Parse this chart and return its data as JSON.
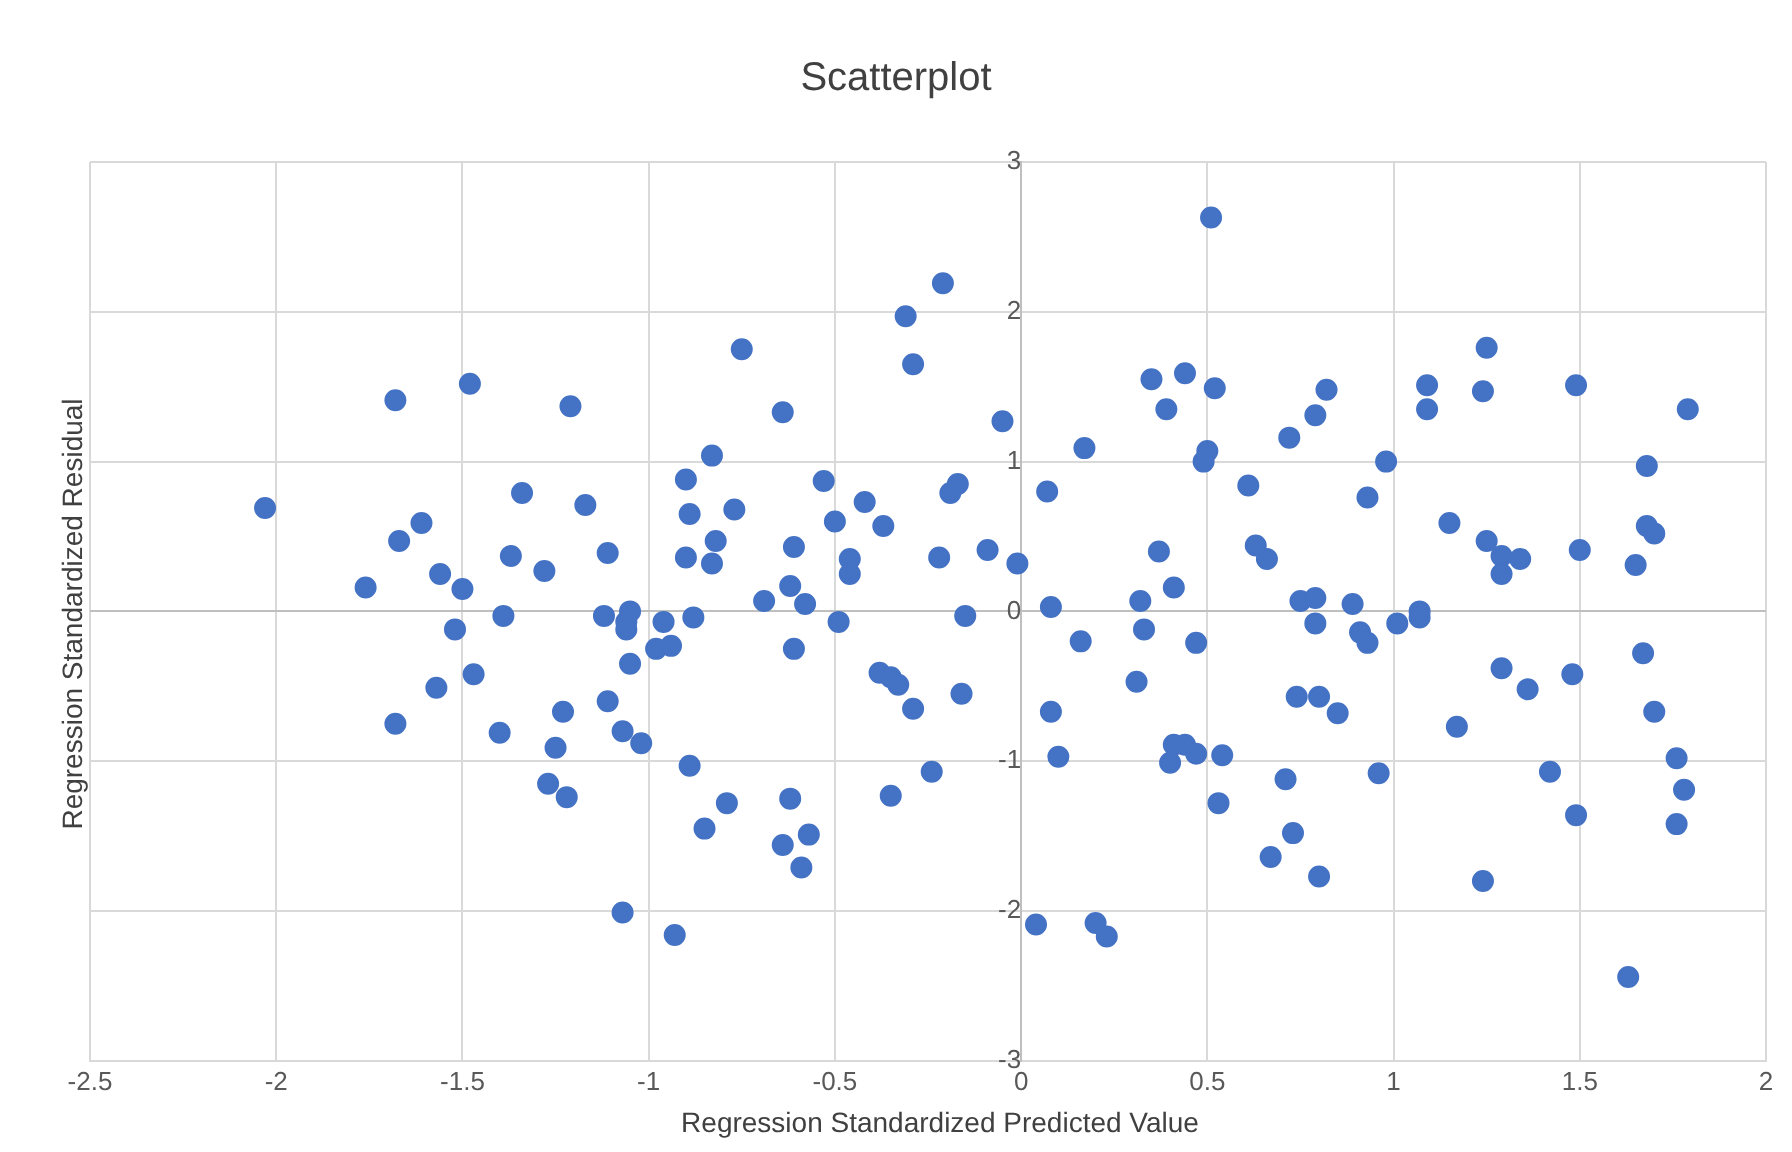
{
  "chart_data": {
    "type": "scatter",
    "title": "Scatterplot",
    "xlabel": "Regression Standardized Predicted Value",
    "ylabel": "Regression Standardized Residual",
    "x": [
      -2.03,
      -1.68,
      -1.48,
      -1.21,
      -1.34,
      -1.17,
      -1.61,
      -1.67,
      -1.37,
      -1.11,
      -1.56,
      -1.28,
      -1.76,
      -1.5,
      -1.39,
      -1.12,
      -1.05,
      -1.06,
      -0.96,
      -1.52,
      -1.06,
      -0.98,
      -1.05,
      -1.47,
      -1.57,
      -1.68,
      -1.4,
      -1.23,
      -1.11,
      -1.25,
      -1.07,
      -1.02,
      -1.27,
      -1.22,
      -1.07,
      -0.88,
      -0.75,
      -0.64,
      -0.83,
      -0.9,
      -0.53,
      -0.89,
      -0.77,
      -0.82,
      -0.9,
      -0.83,
      -0.61,
      -0.62,
      -0.69,
      -0.58,
      -0.5,
      -0.46,
      -0.46,
      -0.42,
      -0.37,
      -0.31,
      -0.21,
      -0.29,
      -0.05,
      -0.19,
      -0.17,
      -0.22,
      -0.09,
      -0.01,
      -0.49,
      -0.15,
      0.07,
      0.08,
      0.17,
      0.32,
      0.33,
      0.41,
      0.37,
      0.35,
      0.44,
      0.39,
      0.52,
      0.51,
      0.5,
      0.49,
      -0.94,
      -0.61,
      -0.89,
      -0.79,
      -0.85,
      -0.62,
      -0.64,
      -0.57,
      -0.59,
      -0.93,
      -0.38,
      -0.35,
      -0.33,
      -0.29,
      -0.16,
      -0.24,
      -0.35,
      0.16,
      0.31,
      0.47,
      0.08,
      0.1,
      0.4,
      0.41,
      0.44,
      0.47,
      0.54,
      0.53,
      0.04,
      0.2,
      0.23,
      0.82,
      0.79,
      0.72,
      0.61,
      0.98,
      0.93,
      0.63,
      0.66,
      0.75,
      0.79,
      0.89,
      0.79,
      0.91,
      0.93,
      1.01,
      1.07,
      1.07,
      1.09,
      1.09,
      1.25,
      1.24,
      1.49,
      1.79,
      1.15,
      1.25,
      1.29,
      1.34,
      1.29,
      1.5,
      1.65,
      1.68,
      1.68,
      1.7,
      1.67,
      1.29,
      1.36,
      1.48,
      1.7,
      1.76,
      1.78,
      1.76,
      1.42,
      1.49,
      1.17,
      0.96,
      0.74,
      0.8,
      0.85,
      0.71,
      0.73,
      0.67,
      0.8,
      1.24,
      1.63
    ],
    "values": [
      0.69,
      1.41,
      1.52,
      1.37,
      0.79,
      0.71,
      0.59,
      0.47,
      0.37,
      0.39,
      0.25,
      0.27,
      0.16,
      0.15,
      -0.03,
      -0.03,
      0.0,
      -0.07,
      -0.07,
      -0.12,
      -0.12,
      -0.25,
      -0.35,
      -0.42,
      -0.51,
      -0.75,
      -0.81,
      -0.67,
      -0.6,
      -0.91,
      -0.8,
      -0.88,
      -1.15,
      -1.24,
      -2.01,
      -0.04,
      1.75,
      1.33,
      1.04,
      0.88,
      0.87,
      0.65,
      0.68,
      0.47,
      0.36,
      0.32,
      0.43,
      0.17,
      0.07,
      0.05,
      0.6,
      0.35,
      0.25,
      0.73,
      0.57,
      1.97,
      2.19,
      1.65,
      1.27,
      0.79,
      0.85,
      0.36,
      0.41,
      0.32,
      -0.07,
      -0.03,
      0.8,
      0.03,
      1.09,
      0.07,
      -0.12,
      0.16,
      0.4,
      1.55,
      1.59,
      1.35,
      1.49,
      2.63,
      1.07,
      1.0,
      -0.23,
      -0.25,
      -1.03,
      -1.28,
      -1.45,
      -1.25,
      -1.56,
      -1.49,
      -1.71,
      -2.16,
      -0.41,
      -0.44,
      -0.49,
      -0.65,
      -0.55,
      -1.07,
      -1.23,
      -0.2,
      -0.47,
      -0.21,
      -0.67,
      -0.97,
      -1.01,
      -0.89,
      -0.89,
      -0.95,
      -0.96,
      -1.28,
      -2.09,
      -2.08,
      -2.17,
      1.48,
      1.31,
      1.16,
      0.84,
      1.0,
      0.76,
      0.44,
      0.35,
      0.07,
      0.09,
      0.05,
      -0.08,
      -0.14,
      -0.21,
      -0.08,
      0.0,
      -0.04,
      1.51,
      1.35,
      1.76,
      1.47,
      1.51,
      1.35,
      0.59,
      0.47,
      0.37,
      0.35,
      0.25,
      0.41,
      0.31,
      0.97,
      0.57,
      0.52,
      -0.28,
      -0.38,
      -0.52,
      -0.42,
      -0.67,
      -0.98,
      -1.19,
      -1.42,
      -1.07,
      -1.36,
      -0.77,
      -1.08,
      -0.57,
      -0.57,
      -0.68,
      -1.12,
      -1.48,
      -1.64,
      -1.77,
      -1.8,
      -2.44
    ],
    "color": "#4472c4",
    "marker": "circle",
    "xlim": [
      -2.5,
      2
    ],
    "ylim": [
      -3,
      3
    ],
    "xticks": [
      -2.5,
      -2,
      -1.5,
      -1,
      -0.5,
      0,
      0.5,
      1,
      1.5,
      2
    ],
    "yticks": [
      -3,
      -2,
      -1,
      0,
      1,
      2,
      3
    ],
    "grid": true
  }
}
